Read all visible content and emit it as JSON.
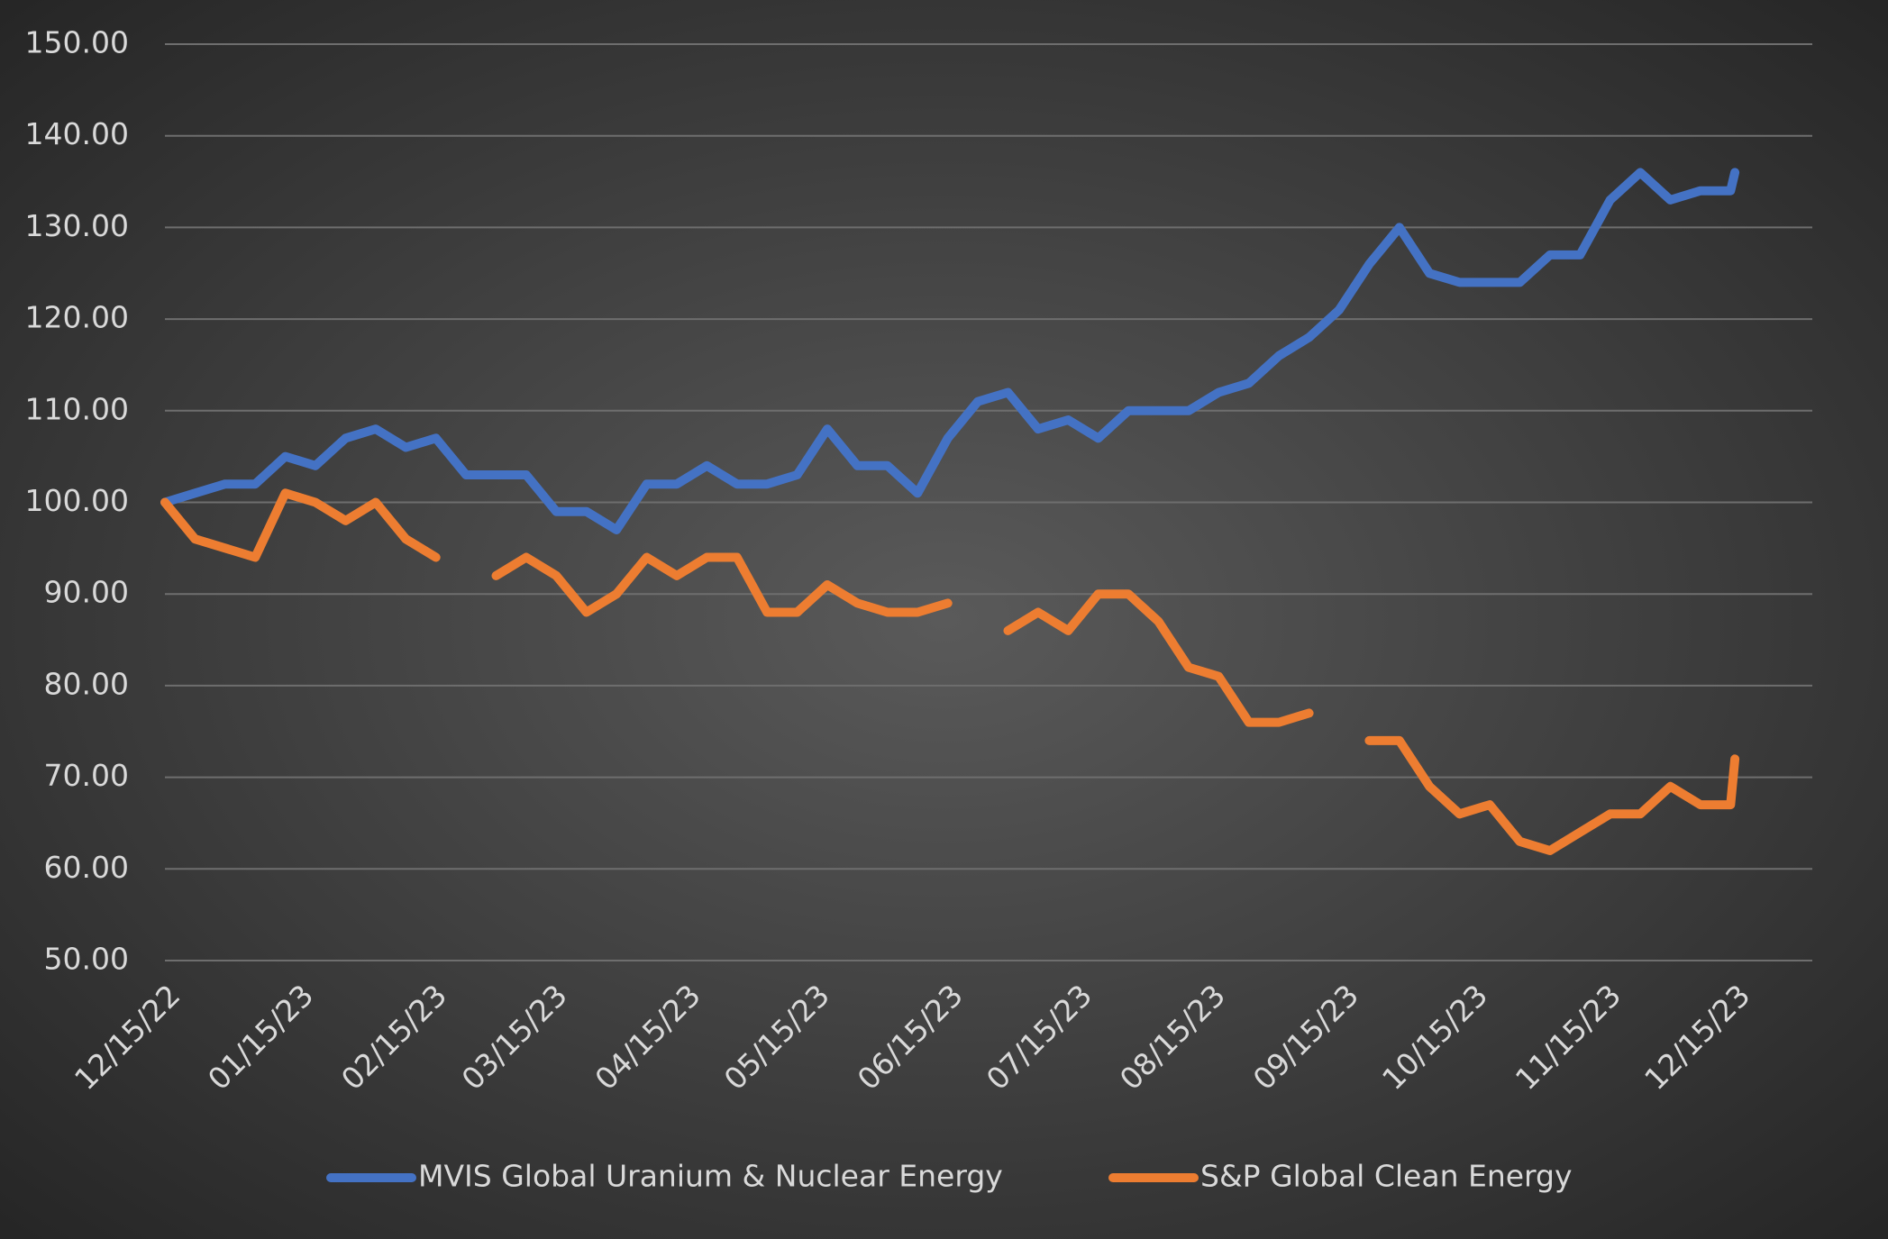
{
  "chart_data": {
    "type": "line",
    "x": [
      "12/15/22",
      "12/22/22",
      "12/29/22",
      "01/05/23",
      "01/12/23",
      "01/19/23",
      "01/26/23",
      "02/02/23",
      "02/09/23",
      "02/16/23",
      "02/23/23",
      "03/02/23",
      "03/09/23",
      "03/16/23",
      "03/23/23",
      "03/30/23",
      "04/06/23",
      "04/13/23",
      "04/20/23",
      "04/27/23",
      "05/04/23",
      "05/11/23",
      "05/18/23",
      "05/25/23",
      "06/01/23",
      "06/08/23",
      "06/15/23",
      "06/22/23",
      "06/29/23",
      "07/06/23",
      "07/13/23",
      "07/20/23",
      "07/27/23",
      "08/03/23",
      "08/10/23",
      "08/17/23",
      "08/24/23",
      "08/31/23",
      "09/07/23",
      "09/14/23",
      "09/21/23",
      "09/28/23",
      "10/05/23",
      "10/12/23",
      "10/19/23",
      "10/26/23",
      "11/02/23",
      "11/09/23",
      "11/16/23",
      "11/23/23",
      "11/30/23",
      "12/07/23",
      "12/14/23",
      "12/15/23"
    ],
    "series": [
      {
        "name": "MVIS Global Uranium & Nuclear Energy",
        "color": "#4472c4",
        "values": [
          100,
          101,
          102,
          102,
          105,
          104,
          107,
          108,
          106,
          107,
          103,
          103,
          103,
          99,
          99,
          97,
          102,
          102,
          104,
          102,
          102,
          103,
          108,
          104,
          104,
          101,
          107,
          111,
          112,
          108,
          109,
          107,
          110,
          110,
          110,
          112,
          113,
          116,
          118,
          121,
          126,
          130,
          125,
          124,
          124,
          124,
          127,
          127,
          133,
          136,
          133,
          134,
          134,
          136
        ]
      },
      {
        "name": "S&P Global Clean Energy",
        "color": "#ed7d31",
        "values": [
          100,
          96,
          95,
          94,
          101,
          100,
          98,
          100,
          96,
          94,
          null,
          92,
          94,
          92,
          88,
          90,
          94,
          92,
          94,
          94,
          88,
          88,
          91,
          89,
          88,
          88,
          89,
          null,
          86,
          88,
          86,
          90,
          90,
          87,
          82,
          81,
          76,
          76,
          77,
          null,
          74,
          74,
          69,
          66,
          67,
          63,
          62,
          64,
          66,
          66,
          69,
          67,
          67,
          72
        ]
      }
    ],
    "xticks": [
      "12/15/22",
      "01/15/23",
      "02/15/23",
      "03/15/23",
      "04/15/23",
      "05/15/23",
      "06/15/23",
      "07/15/23",
      "08/15/23",
      "09/15/23",
      "10/15/23",
      "11/15/23",
      "12/15/23"
    ],
    "xlim": [
      "12/15/22",
      "01/02/24"
    ],
    "ylim": [
      50,
      150
    ],
    "yticks": [
      {
        "value": 50,
        "label": "50.00"
      },
      {
        "value": 60,
        "label": "60.00"
      },
      {
        "value": 70,
        "label": "70.00"
      },
      {
        "value": 80,
        "label": "80.00"
      },
      {
        "value": 90,
        "label": "90.00"
      },
      {
        "value": 100,
        "label": "100.00"
      },
      {
        "value": 110,
        "label": "110.00"
      },
      {
        "value": 120,
        "label": "120.00"
      },
      {
        "value": 130,
        "label": "130.00"
      },
      {
        "value": 140,
        "label": "140.00"
      },
      {
        "value": 150,
        "label": "150.00"
      }
    ],
    "grid": true,
    "legend": "bottom"
  }
}
